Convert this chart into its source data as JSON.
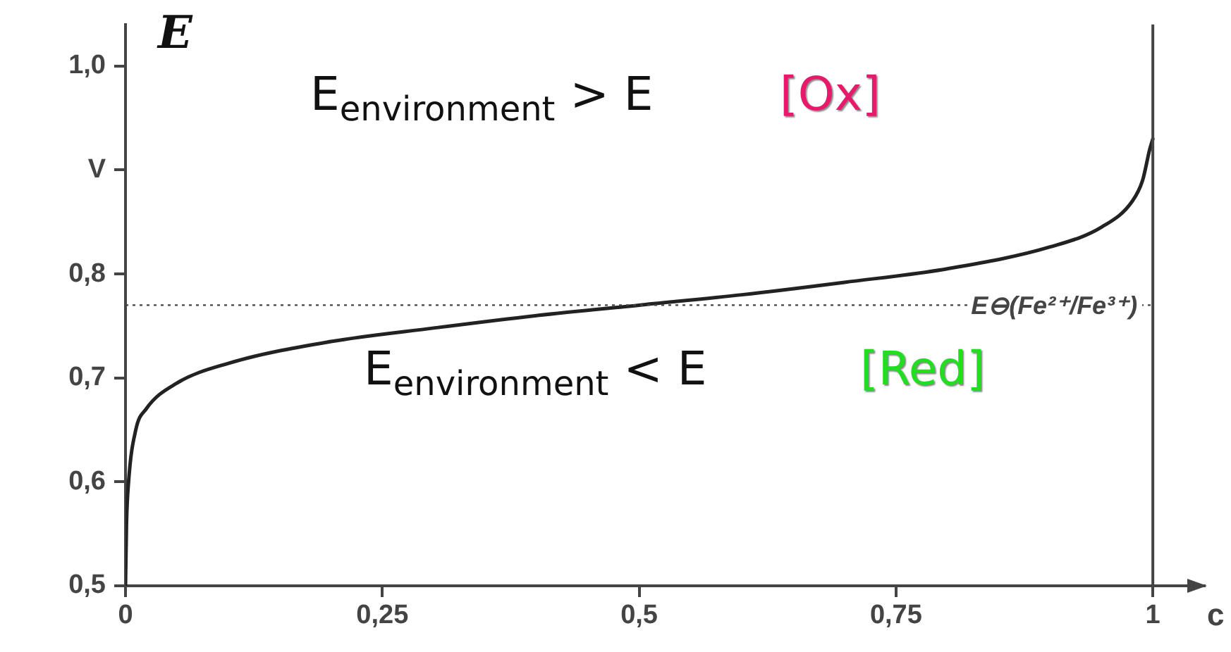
{
  "chart_data": {
    "type": "line",
    "ylabel": "E",
    "xlabel": "c",
    "x": [
      0,
      0.001,
      0.003,
      0.01,
      0.02,
      0.05,
      0.1,
      0.2,
      0.3,
      0.4,
      0.5,
      0.6,
      0.7,
      0.8,
      0.9,
      0.95,
      0.98,
      0.99,
      0.997,
      1
    ],
    "series": [
      {
        "color": "#222222",
        "values": [
          0.5,
          0.56,
          0.6,
          0.65,
          0.67,
          0.695,
          0.714,
          0.735,
          0.748,
          0.76,
          0.77,
          0.78,
          0.792,
          0.805,
          0.826,
          0.845,
          0.87,
          0.89,
          0.92,
          0.93
        ]
      }
    ],
    "xlim": [
      0,
      1.05
    ],
    "xticks": [
      0,
      {
        "value": 0.25,
        "label": "0,25"
      },
      {
        "value": 0.5,
        "label": "0,5"
      },
      {
        "value": 0.75,
        "label": "0,75"
      },
      1
    ],
    "ylim": [
      0.5,
      1.04
    ],
    "yticks": [
      {
        "value": 0.5,
        "label": "0,5"
      },
      {
        "value": 0.6,
        "label": "0,6"
      },
      {
        "value": 0.7,
        "label": "0,7"
      },
      {
        "value": 0.8,
        "label": "0,8"
      },
      {
        "value": 0.9,
        "label": "V"
      },
      {
        "value": 1,
        "label": "1,0"
      }
    ],
    "ref_lines": [
      {
        "axis": "y",
        "value": 0.77,
        "label": "E⊖(Fe²⁺/Fe³⁺)",
        "line_style": "dotted",
        "color": "#444444"
      },
      {
        "axis": "x",
        "value": 1,
        "label": null,
        "line_style": "solid",
        "color": "#444444"
      }
    ],
    "annotations": [
      "E$_{environment}$  > E",
      "[Ox]",
      "E$_{environment}$ < E",
      "[Red]"
    ],
    "grid": false,
    "legend": false,
    "marker": "none",
    "line_style": "solid"
  }
}
